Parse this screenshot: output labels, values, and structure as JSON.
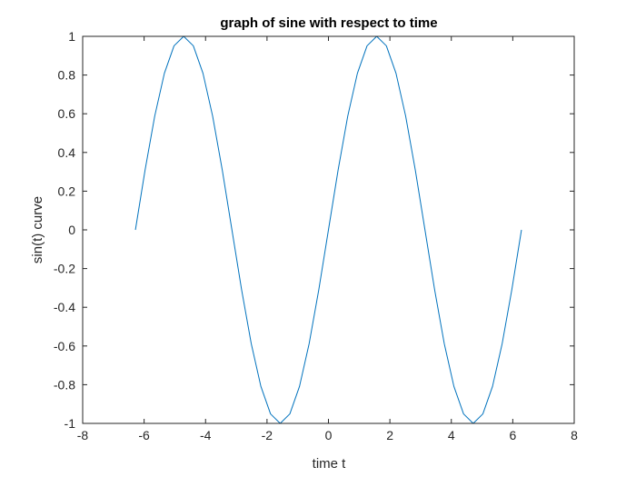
{
  "chart_data": {
    "type": "line",
    "title": "graph of sine with respect to time",
    "xlabel": "time t",
    "ylabel": "sin(t) curve",
    "xlim": [
      -8,
      8
    ],
    "ylim": [
      -1,
      1
    ],
    "xticks": [
      -8,
      -6,
      -4,
      -2,
      0,
      2,
      4,
      6,
      8
    ],
    "xtick_labels": [
      "-8",
      "-6",
      "-4",
      "-2",
      "0",
      "2",
      "4",
      "6",
      "8"
    ],
    "yticks": [
      -1,
      -0.8,
      -0.6,
      -0.4,
      -0.2,
      0,
      0.2,
      0.4,
      0.6,
      0.8,
      1
    ],
    "ytick_labels": [
      "-1",
      "-0.8",
      "-0.6",
      "-0.4",
      "-0.2",
      "0",
      "0.2",
      "0.4",
      "0.6",
      "0.8",
      "1"
    ],
    "grid": false,
    "box": true,
    "line_color": "#0072BD",
    "series": [
      {
        "x": [
          -6.2832,
          -5.969,
          -5.6549,
          -5.3407,
          -5.0265,
          -4.7124,
          -4.3982,
          -4.0841,
          -3.7699,
          -3.4558,
          -3.1416,
          -2.8274,
          -2.5133,
          -2.1991,
          -1.885,
          -1.5708,
          -1.2566,
          -0.9425,
          -0.6283,
          -0.3142,
          0.0,
          0.3142,
          0.6283,
          0.9425,
          1.2566,
          1.5708,
          1.885,
          2.1991,
          2.5133,
          2.8274,
          3.1416,
          3.4558,
          3.7699,
          4.0841,
          4.3982,
          4.7124,
          5.0265,
          5.3407,
          5.6549,
          5.969,
          6.2832
        ],
        "y": [
          0.0,
          0.309,
          0.5878,
          0.809,
          0.9511,
          1.0,
          0.9511,
          0.809,
          0.5878,
          0.309,
          0.0,
          -0.309,
          -0.5878,
          -0.809,
          -0.9511,
          -1.0,
          -0.9511,
          -0.809,
          -0.5878,
          -0.309,
          0.0,
          0.309,
          0.5878,
          0.809,
          0.9511,
          1.0,
          0.9511,
          0.809,
          0.5878,
          0.309,
          0.0,
          -0.309,
          -0.5878,
          -0.809,
          -0.9511,
          -1.0,
          -0.9511,
          -0.809,
          -0.5878,
          -0.309,
          0.0
        ]
      }
    ]
  }
}
